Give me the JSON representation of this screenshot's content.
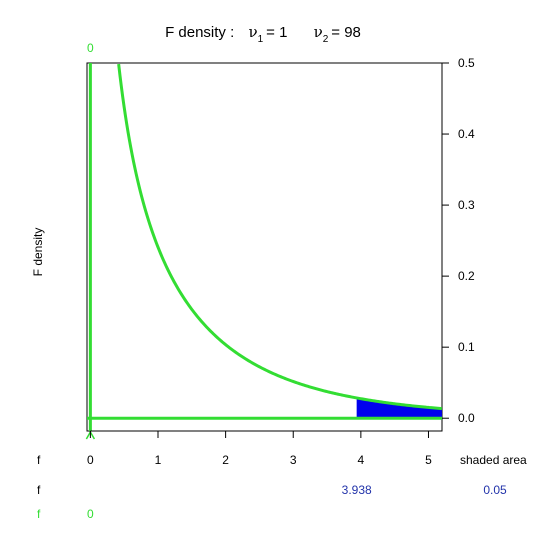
{
  "colors": {
    "curve": "#33dd33",
    "shade": "#0000ee",
    "value_text": "#2233aa",
    "axis": "#000000",
    "background": "#ffffff"
  },
  "chart_data": {
    "type": "area",
    "title": {
      "prefix": "F density :",
      "nu1_symbol": "ν",
      "nu1_sub": "1",
      "nu1_value": "= 1",
      "nu2_symbol": "ν",
      "nu2_sub": "2",
      "nu2_value": "= 98"
    },
    "ylabel": "F density",
    "x_ticks": [
      0,
      1,
      2,
      3,
      4,
      5
    ],
    "y_ticks": [
      "0.0",
      "0.1",
      "0.2",
      "0.3",
      "0.4",
      "0.5"
    ],
    "xlim": [
      -0.05,
      5.2
    ],
    "ylim": [
      -0.018,
      0.5
    ],
    "df1": 1,
    "df2": 98,
    "critical_value": 3.938,
    "green_marker": "0",
    "shaded_area": "0.05",
    "bottom_rows": {
      "row1_label": "f",
      "shaded_area_label": "shaded area",
      "row2_label": "f",
      "row2_critical": "3.938",
      "row2_area": "0.05",
      "row3_label": "f",
      "row3_value": "0"
    }
  }
}
